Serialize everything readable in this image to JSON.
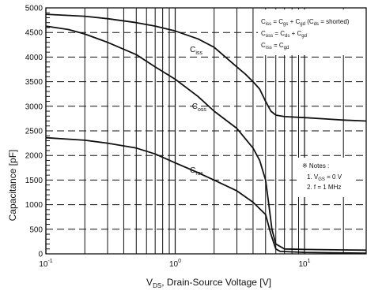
{
  "chart_data": {
    "type": "line",
    "xscale": "log",
    "xlim": [
      0.1,
      30
    ],
    "ylim": [
      0,
      5000
    ],
    "grid": true,
    "xlabel": {
      "prefix": "V",
      "sub": "DS",
      "suffix": ", Drain-Source Voltage [V]"
    },
    "ylabel": "Capacitance [pF]",
    "x_ticks": [
      {
        "value": 0.1,
        "base": "10",
        "exp": "-1"
      },
      {
        "value": 1,
        "base": "10",
        "exp": "0"
      },
      {
        "value": 10,
        "base": "10",
        "exp": "1"
      }
    ],
    "y_ticks": [
      {
        "value": 0,
        "label": "0"
      },
      {
        "value": 500,
        "label": "500"
      },
      {
        "value": 1000,
        "label": "1000"
      },
      {
        "value": 1500,
        "label": "1500"
      },
      {
        "value": 2000,
        "label": "2000"
      },
      {
        "value": 2500,
        "label": "2500"
      },
      {
        "value": 3000,
        "label": "3000"
      },
      {
        "value": 3500,
        "label": "3500"
      },
      {
        "value": 4000,
        "label": "4000"
      },
      {
        "value": 4500,
        "label": "4500"
      },
      {
        "value": 5000,
        "label": "5000"
      }
    ],
    "series": [
      {
        "key": "ciss",
        "label_main": "C",
        "label_sub": "iss",
        "label_at": {
          "x": 1.3,
          "y": 4100
        },
        "points": [
          [
            0.1,
            4870
          ],
          [
            0.2,
            4830
          ],
          [
            0.3,
            4780
          ],
          [
            0.5,
            4700
          ],
          [
            0.7,
            4630
          ],
          [
            1,
            4530
          ],
          [
            1.5,
            4370
          ],
          [
            2,
            4200
          ],
          [
            3,
            3800
          ],
          [
            3.5,
            3650
          ],
          [
            4,
            3500
          ],
          [
            4.5,
            3350
          ],
          [
            5,
            3100
          ],
          [
            5.5,
            2900
          ],
          [
            6,
            2820
          ],
          [
            7,
            2790
          ],
          [
            10,
            2770
          ],
          [
            15,
            2740
          ],
          [
            20,
            2720
          ],
          [
            30,
            2700
          ]
        ]
      },
      {
        "key": "coss",
        "label_main": "C",
        "label_sub": "oss",
        "label_at": {
          "x": 1.35,
          "y": 2950
        },
        "points": [
          [
            0.1,
            4630
          ],
          [
            0.15,
            4560
          ],
          [
            0.2,
            4470
          ],
          [
            0.3,
            4300
          ],
          [
            0.5,
            4050
          ],
          [
            0.7,
            3800
          ],
          [
            1,
            3550
          ],
          [
            1.5,
            3200
          ],
          [
            2,
            2900
          ],
          [
            3,
            2550
          ],
          [
            4,
            2150
          ],
          [
            4.5,
            1900
          ],
          [
            5,
            1500
          ],
          [
            5.3,
            1000
          ],
          [
            5.6,
            500
          ],
          [
            6,
            200
          ],
          [
            7,
            100
          ],
          [
            10,
            90
          ],
          [
            20,
            80
          ],
          [
            30,
            75
          ]
        ]
      },
      {
        "key": "crss",
        "label_main": "C",
        "label_sub": "rss",
        "label_at": {
          "x": 1.3,
          "y": 1650
        },
        "points": [
          [
            0.1,
            2360
          ],
          [
            0.2,
            2310
          ],
          [
            0.3,
            2250
          ],
          [
            0.5,
            2150
          ],
          [
            0.7,
            2030
          ],
          [
            1,
            1850
          ],
          [
            1.5,
            1650
          ],
          [
            2,
            1500
          ],
          [
            3,
            1280
          ],
          [
            4,
            1050
          ],
          [
            5,
            800
          ],
          [
            5.5,
            400
          ],
          [
            6,
            100
          ],
          [
            6.5,
            50
          ],
          [
            10,
            30
          ],
          [
            20,
            20
          ],
          [
            30,
            15
          ]
        ]
      }
    ],
    "legend": {
      "position": "top-right",
      "lines": [
        {
          "a": "C",
          "as": "iss",
          "b": " = C",
          "bs": "gs",
          "c": " + C",
          "cs": "gd",
          "d": " (C",
          "ds": "ds",
          "e": " = shorted)"
        },
        {
          "a": "C",
          "as": "oss",
          "b": " = C",
          "bs": "ds",
          "c": " + C",
          "cs": "gd",
          "d": "",
          "ds": "",
          "e": ""
        },
        {
          "a": "C",
          "as": "rss",
          "b": " = C",
          "bs": "gd",
          "c": "",
          "cs": "",
          "d": "",
          "ds": "",
          "e": ""
        }
      ]
    },
    "notes": {
      "title": "※ Notes :",
      "lines": [
        {
          "pre": "1. V",
          "sub": "GS",
          "post": " = 0 V"
        },
        {
          "pre": "2. f = 1 MHz",
          "sub": "",
          "post": ""
        }
      ]
    }
  }
}
